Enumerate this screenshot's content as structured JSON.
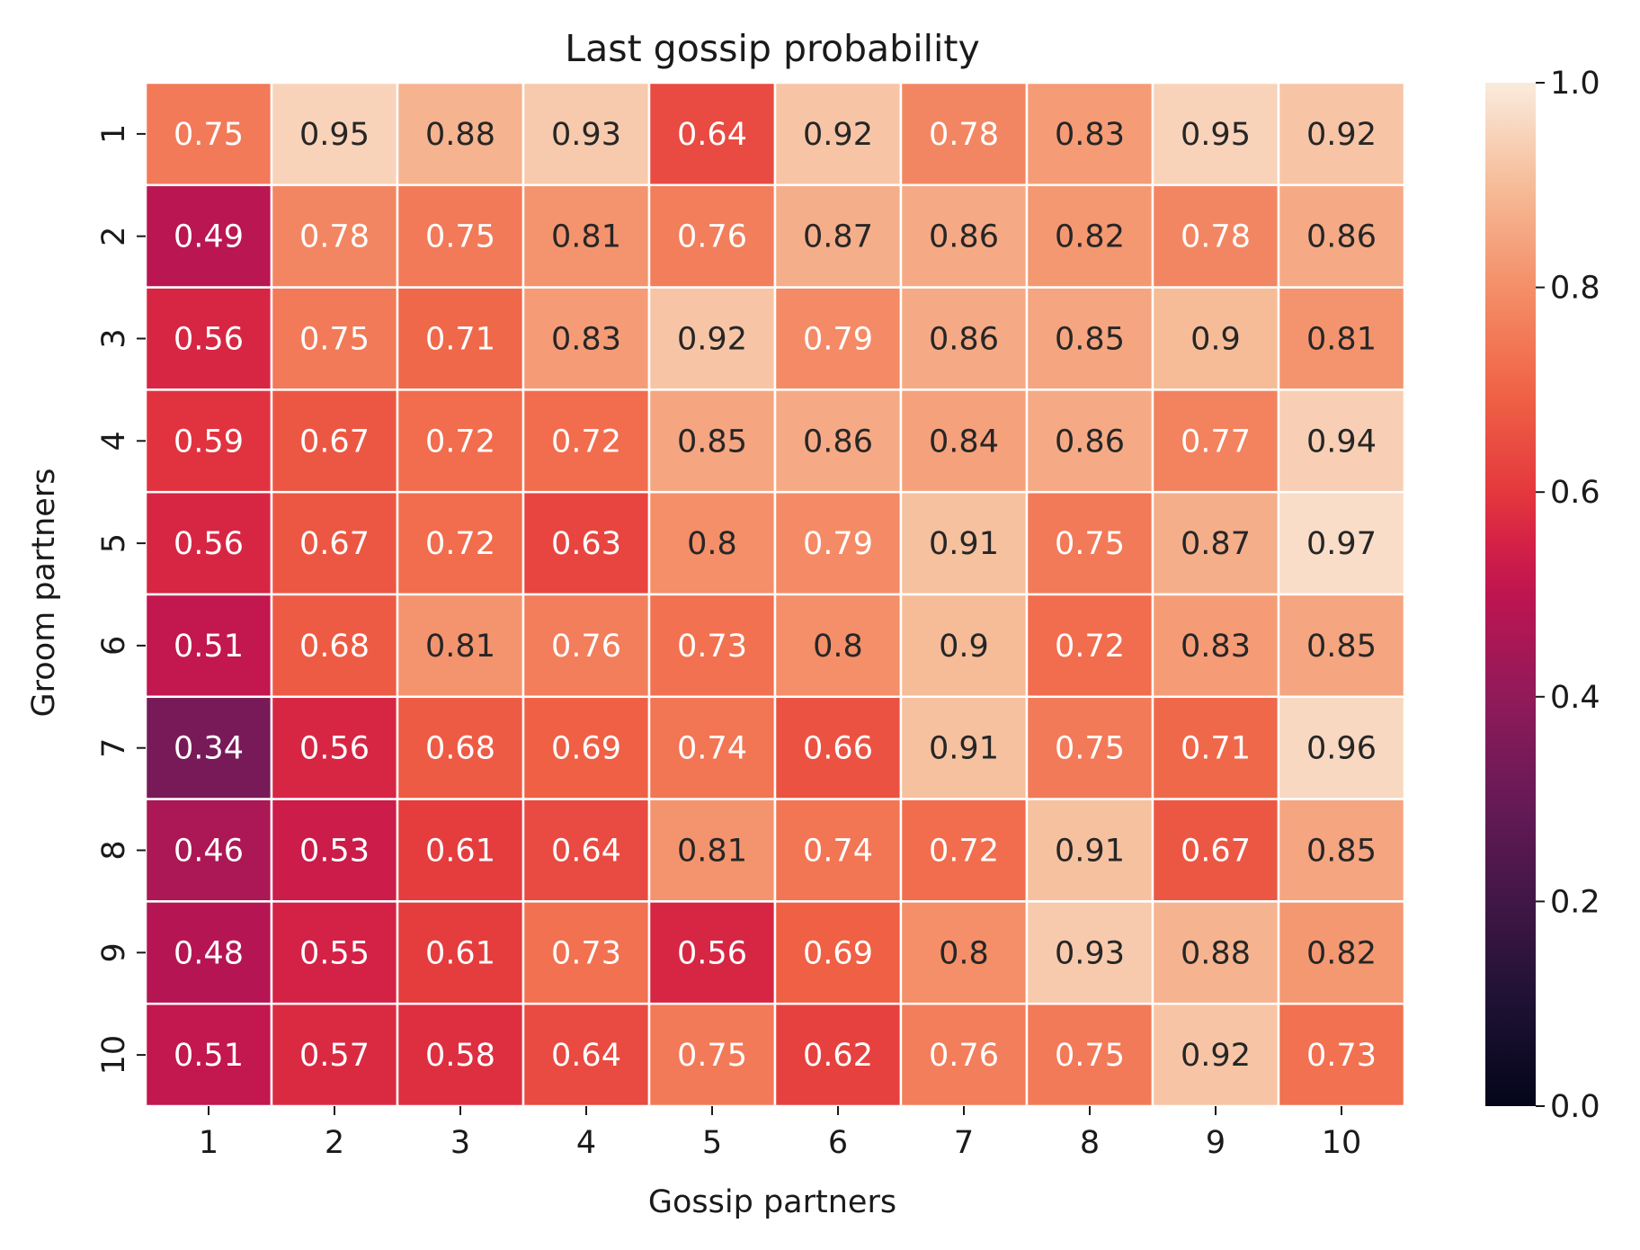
{
  "chart_data": {
    "type": "heatmap",
    "title": "Last gossip probability",
    "xlabel": "Gossip partners",
    "ylabel": "Groom partners",
    "x_categories": [
      "1",
      "2",
      "3",
      "4",
      "5",
      "6",
      "7",
      "8",
      "9",
      "10"
    ],
    "y_categories": [
      "1",
      "2",
      "3",
      "4",
      "5",
      "6",
      "7",
      "8",
      "9",
      "10"
    ],
    "values": [
      [
        0.75,
        0.95,
        0.88,
        0.93,
        0.64,
        0.92,
        0.78,
        0.83,
        0.95,
        0.92
      ],
      [
        0.49,
        0.78,
        0.75,
        0.81,
        0.76,
        0.87,
        0.86,
        0.82,
        0.78,
        0.86
      ],
      [
        0.56,
        0.75,
        0.71,
        0.83,
        0.92,
        0.79,
        0.86,
        0.85,
        0.9,
        0.81
      ],
      [
        0.59,
        0.67,
        0.72,
        0.72,
        0.85,
        0.86,
        0.84,
        0.86,
        0.77,
        0.94
      ],
      [
        0.56,
        0.67,
        0.72,
        0.63,
        0.8,
        0.79,
        0.91,
        0.75,
        0.87,
        0.97
      ],
      [
        0.51,
        0.68,
        0.81,
        0.76,
        0.73,
        0.8,
        0.9,
        0.72,
        0.83,
        0.85
      ],
      [
        0.34,
        0.56,
        0.68,
        0.69,
        0.74,
        0.66,
        0.91,
        0.75,
        0.71,
        0.96
      ],
      [
        0.46,
        0.53,
        0.61,
        0.64,
        0.81,
        0.74,
        0.72,
        0.91,
        0.67,
        0.85
      ],
      [
        0.48,
        0.55,
        0.61,
        0.73,
        0.56,
        0.69,
        0.8,
        0.93,
        0.88,
        0.82
      ],
      [
        0.51,
        0.57,
        0.58,
        0.64,
        0.75,
        0.62,
        0.76,
        0.75,
        0.92,
        0.73
      ]
    ],
    "value_range": [
      0.0,
      1.0
    ],
    "colormap": "rocket",
    "colorbar": {
      "ticks": [
        "0.0",
        "0.2",
        "0.4",
        "0.6",
        "0.8",
        "1.0"
      ],
      "tick_values": [
        0.0,
        0.2,
        0.4,
        0.6,
        0.8,
        1.0
      ],
      "placement": "right"
    },
    "grid": false,
    "cell_separator_color": "#ffffff",
    "text_color_light": "#ffffff",
    "text_color_dark": "#262626"
  }
}
